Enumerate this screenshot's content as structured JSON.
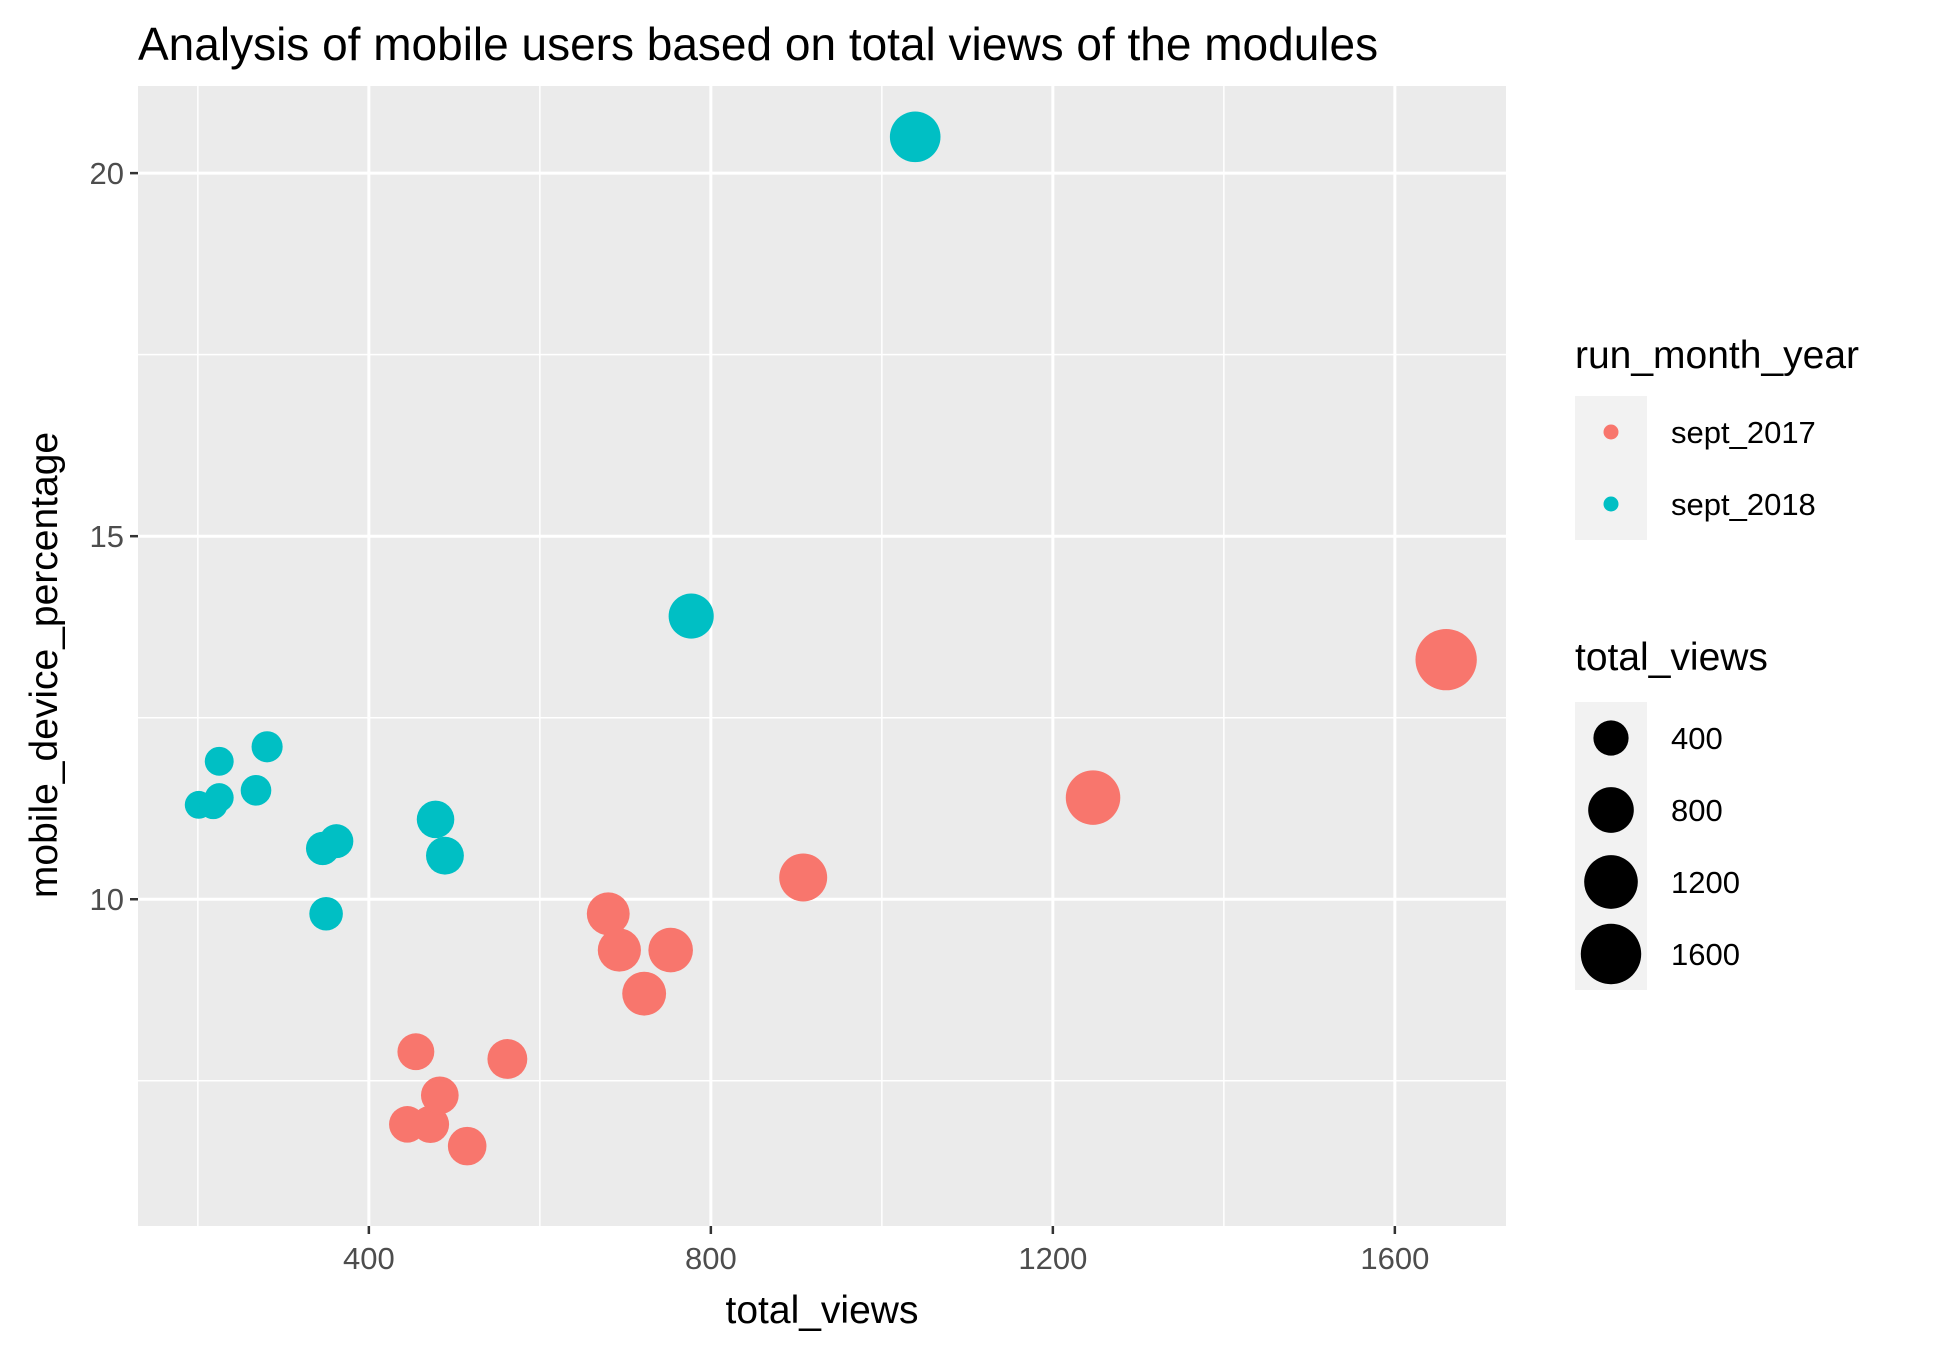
{
  "chart_data": {
    "type": "scatter",
    "title": "Analysis of mobile users based on total views of the modules",
    "xlabel": "total_views",
    "ylabel": "mobile_device_percentage",
    "xlim": [
      130,
      1730
    ],
    "ylim": [
      5.5,
      21.2
    ],
    "x_ticks": [
      400,
      800,
      1200,
      1600
    ],
    "y_ticks": [
      10,
      15,
      20
    ],
    "grid": true,
    "colors": {
      "sept_2017": "#F8766D",
      "sept_2018": "#00BFC4",
      "panel": "#EBEBEB",
      "grid": "#FFFFFF"
    },
    "legend": {
      "placement": "right",
      "color_title": "run_month_year",
      "color_entries": [
        {
          "label": "sept_2017",
          "series": "sept_2017"
        },
        {
          "label": "sept_2018",
          "series": "sept_2018"
        }
      ],
      "size_title": "total_views",
      "size_entries": [
        {
          "label": "400",
          "value": 400
        },
        {
          "label": "800",
          "value": 800
        },
        {
          "label": "1200",
          "value": 1200
        },
        {
          "label": "1600",
          "value": 1600
        }
      ]
    },
    "series": [
      {
        "name": "sept_2017",
        "points": [
          {
            "x": 455,
            "y": 7.9
          },
          {
            "x": 445,
            "y": 6.9
          },
          {
            "x": 472,
            "y": 6.9
          },
          {
            "x": 483,
            "y": 7.3
          },
          {
            "x": 515,
            "y": 6.6
          },
          {
            "x": 562,
            "y": 7.8
          },
          {
            "x": 680,
            "y": 9.8
          },
          {
            "x": 693,
            "y": 9.3
          },
          {
            "x": 722,
            "y": 8.7
          },
          {
            "x": 753,
            "y": 9.3
          },
          {
            "x": 908,
            "y": 10.3
          },
          {
            "x": 1247,
            "y": 11.4
          },
          {
            "x": 1660,
            "y": 13.3
          }
        ]
      },
      {
        "name": "sept_2018",
        "points": [
          {
            "x": 201,
            "y": 11.3
          },
          {
            "x": 218,
            "y": 11.3
          },
          {
            "x": 225,
            "y": 11.4
          },
          {
            "x": 225,
            "y": 11.9
          },
          {
            "x": 268,
            "y": 11.5
          },
          {
            "x": 281,
            "y": 12.1
          },
          {
            "x": 346,
            "y": 10.7
          },
          {
            "x": 362,
            "y": 10.8
          },
          {
            "x": 350,
            "y": 9.8
          },
          {
            "x": 478,
            "y": 11.1
          },
          {
            "x": 489,
            "y": 10.6
          },
          {
            "x": 777,
            "y": 13.9
          },
          {
            "x": 1039,
            "y": 20.5
          }
        ]
      }
    ]
  }
}
